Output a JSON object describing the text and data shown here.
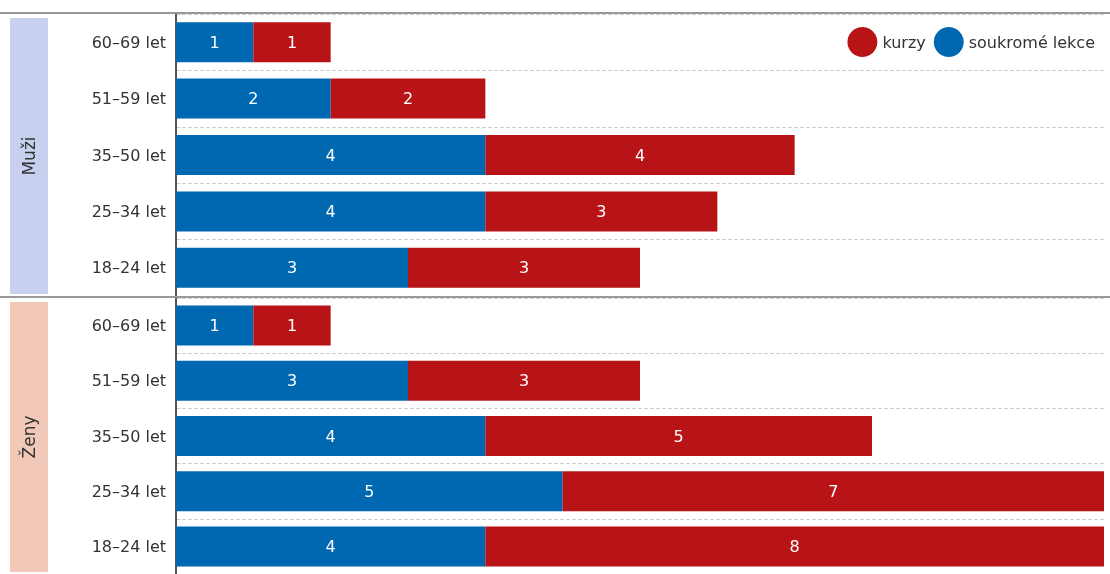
{
  "chart_data": [
    {
      "type": "bar",
      "orientation": "horizontal",
      "stacked": true,
      "ylabel": "Muži",
      "categories": [
        "60–69 let",
        "51–59 let",
        "35–50 let",
        "25–34 let",
        "18–24 let"
      ],
      "series": [
        {
          "name": "soukromé lekce",
          "color": "#0067b1",
          "values": [
            1,
            2,
            4,
            4,
            3
          ]
        },
        {
          "name": "kurzy",
          "color": "#b81417",
          "values": [
            1,
            2,
            4,
            3,
            3
          ]
        }
      ],
      "data_labels": true,
      "legend": "top right",
      "grid": "y"
    },
    {
      "type": "bar",
      "orientation": "horizontal",
      "stacked": true,
      "ylabel": "Ženy",
      "categories": [
        "60–69 let",
        "51–59 let",
        "35–50 let",
        "25–34 let",
        "18–24 let"
      ],
      "series": [
        {
          "color": "#0067b1",
          "values": [
            1,
            3,
            4,
            5,
            4
          ]
        },
        {
          "color": "#b81417",
          "values": [
            1,
            3,
            5,
            7,
            8
          ]
        }
      ],
      "data_labels": true,
      "grid": "y"
    }
  ]
}
